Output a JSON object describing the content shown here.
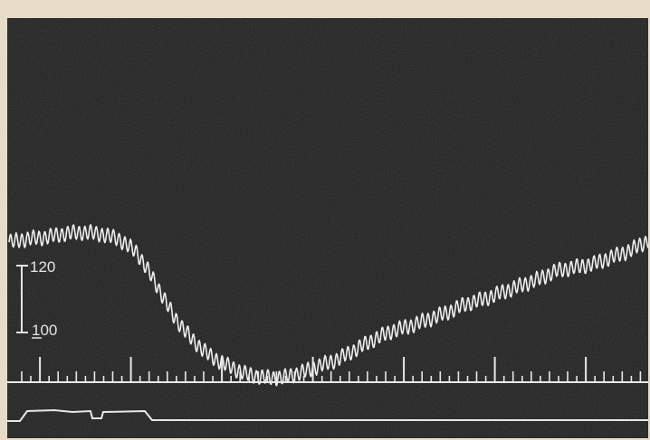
{
  "chart_data": {
    "type": "line",
    "title": "",
    "xlabel": "",
    "ylabel": "",
    "series": [
      {
        "x": [
          0,
          2,
          4,
          6,
          8,
          10,
          12,
          14,
          16,
          18,
          20,
          22,
          24,
          26,
          28,
          30,
          32,
          34,
          36,
          38,
          40,
          42,
          44,
          46,
          48,
          50,
          52,
          54,
          56,
          58,
          60,
          62,
          64,
          66,
          68,
          70
        ],
        "values": [
          127,
          128,
          128.5,
          129.5,
          130,
          129.5,
          128,
          124,
          115,
          105,
          98,
          93,
          90,
          87.5,
          86.5,
          86.5,
          88,
          90,
          92,
          95,
          98,
          100.5,
          102,
          104,
          106,
          108.5,
          110,
          112,
          114,
          116,
          118.5,
          119.5,
          120.5,
          122.5,
          124.5,
          127.5
        ]
      }
    ],
    "scale_bar": {
      "labels": [
        "120",
        "100"
      ],
      "values": [
        120,
        100
      ]
    },
    "colors": {
      "trace": "#efefef",
      "background": "#1c1c1c",
      "label": "#e4e4e4",
      "border": "#e6dcc7"
    }
  }
}
